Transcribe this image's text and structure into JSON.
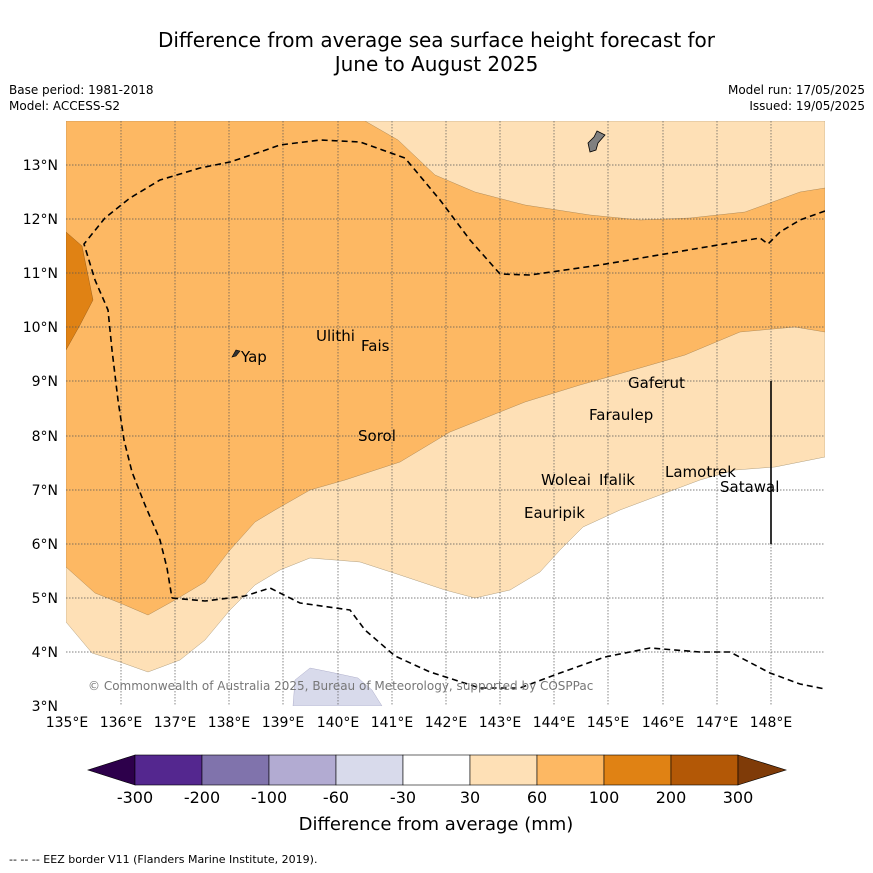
{
  "title_line1": "Difference from average sea surface height forecast for",
  "title_line2": "June to August 2025",
  "meta": {
    "base_period": "Base period: 1981-2018",
    "model": "Model: ACCESS-S2",
    "model_run": "Model run: 17/05/2025",
    "issued": "Issued: 19/05/2025"
  },
  "map": {
    "lon_ticks": [
      "135°E",
      "136°E",
      "137°E",
      "138°E",
      "139°E",
      "140°E",
      "141°E",
      "142°E",
      "143°E",
      "144°E",
      "145°E",
      "146°E",
      "147°E",
      "148°E"
    ],
    "lat_ticks": [
      "3°N",
      "4°N",
      "5°N",
      "6°N",
      "7°N",
      "8°N",
      "9°N",
      "10°N",
      "11°N",
      "12°N",
      "13°N"
    ],
    "places": [
      {
        "name": "Yap",
        "lon": 138.25,
        "lat": 9.45
      },
      {
        "name": "Ulithi",
        "lon": 139.65,
        "lat": 9.85
      },
      {
        "name": "Fais",
        "lon": 140.4,
        "lat": 9.65
      },
      {
        "name": "Gaferut",
        "lon": 145.35,
        "lat": 8.9
      },
      {
        "name": "Faraulep",
        "lon": 144.6,
        "lat": 8.3
      },
      {
        "name": "Sorol",
        "lon": 140.35,
        "lat": 7.95
      },
      {
        "name": "Woleai",
        "lon": 143.9,
        "lat": 7.15
      },
      {
        "name": "Ifalik",
        "lon": 144.45,
        "lat": 7.15
      },
      {
        "name": "Lamotrek",
        "lon": 146.05,
        "lat": 7.3
      },
      {
        "name": "Satawal",
        "lon": 147.1,
        "lat": 7.0
      },
      {
        "name": "Eauripik",
        "lon": 143.4,
        "lat": 6.55
      }
    ],
    "copyright": "© Commonwealth of Australia 2025, Bureau of Meteorology, supported by COSPPac"
  },
  "colorbar": {
    "labels": [
      "-300",
      "-200",
      "-100",
      "-60",
      "-30",
      "30",
      "60",
      "100",
      "200",
      "300"
    ],
    "colors": [
      "#54278f",
      "#8073ac",
      "#b2abd2",
      "#d8daeb",
      "#ffffff",
      "#fee0b6",
      "#fdb863",
      "#e08214",
      "#b35806"
    ],
    "under_color": "#2d004b",
    "over_color": "#7f3b08",
    "label": "Difference from average (mm)"
  },
  "footer": "--  --  -- EEZ border V11 (Flanders Marine Institute, 2019)."
}
